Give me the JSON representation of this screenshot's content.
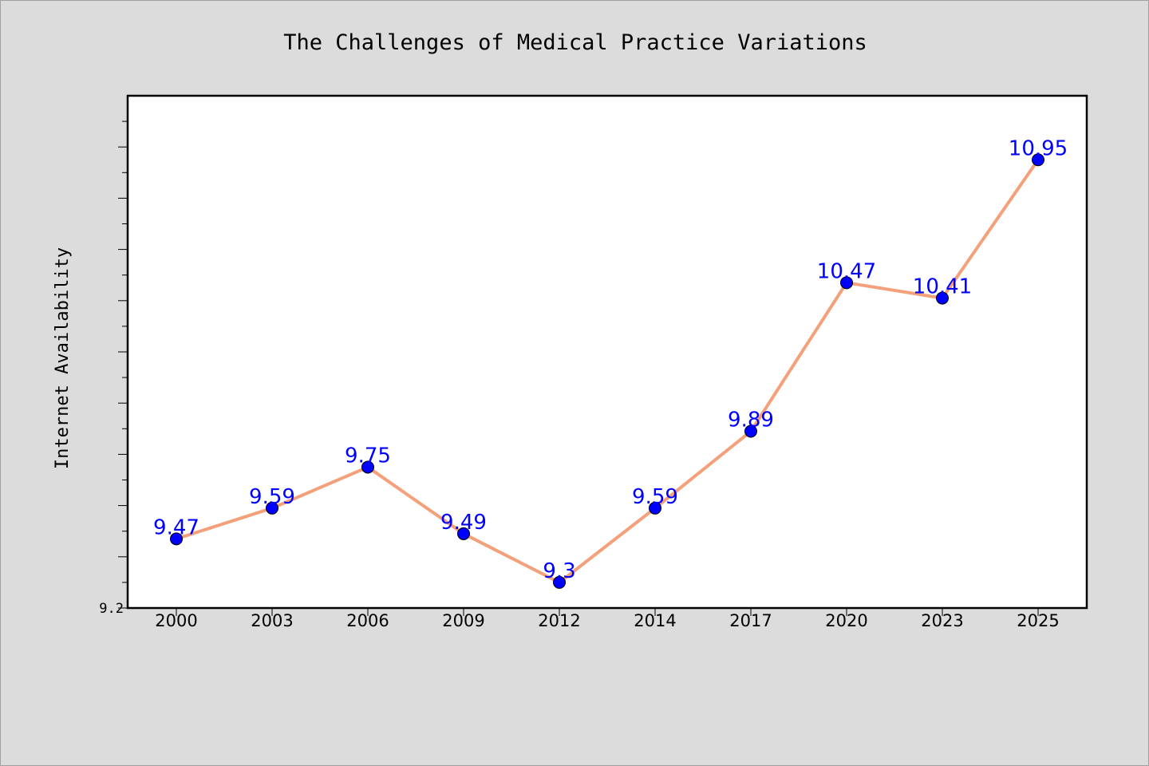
{
  "chart_data": {
    "type": "line",
    "title": "The Challenges of Medical Practice Variations",
    "xlabel": "",
    "ylabel": "Internet Availability",
    "categories": [
      "2000",
      "2003",
      "2006",
      "2009",
      "2012",
      "2014",
      "2017",
      "2020",
      "2023",
      "2025"
    ],
    "series": [
      {
        "values": [
          9.47,
          9.59,
          9.75,
          9.49,
          9.3,
          9.59,
          9.89,
          10.47,
          10.41,
          10.95
        ]
      }
    ],
    "data_labels": [
      "9.47",
      "9.59",
      "9.75",
      "9.49",
      "9.3",
      "9.59",
      "9.89",
      "10.47",
      "10.41",
      "10.95"
    ],
    "ylim": [
      9.2,
      11.2
    ],
    "y_tick_labels": [
      "9.2"
    ],
    "grid": false,
    "colors": {
      "line": "#f4a07a",
      "marker": "#0000ff",
      "data_label": "#0000ff",
      "plot_background": "#ffffff",
      "figure_background": "#dcdcdc"
    }
  }
}
